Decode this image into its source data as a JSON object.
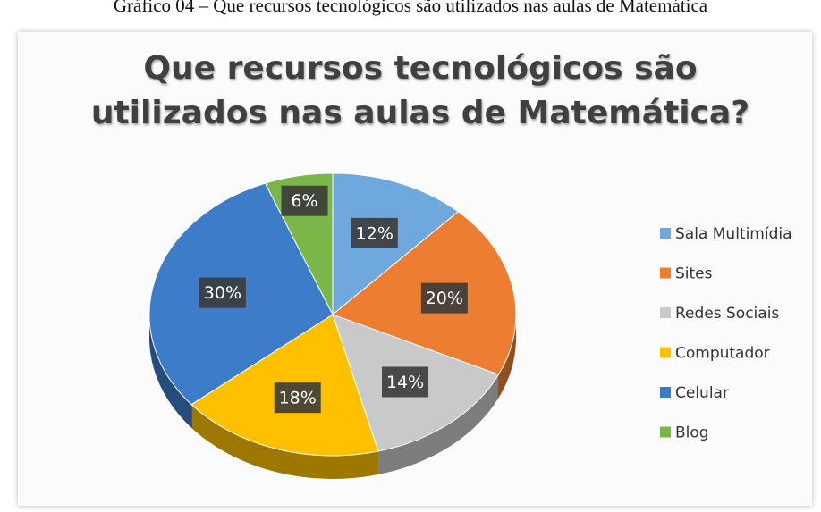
{
  "caption": "Gráfico 04 – Que recursos tecnológicos são utilizados nas aulas de Matemática",
  "chart_data": {
    "type": "pie",
    "title": "Que recursos tecnológicos são utilizados nas aulas de Matemática?",
    "categories": [
      "Sala Multimídia",
      "Sites",
      "Redes Sociais",
      "Computador",
      "Celular",
      "Blog"
    ],
    "values": [
      12,
      20,
      14,
      18,
      30,
      6
    ],
    "value_labels": [
      "12%",
      "20%",
      "14%",
      "18%",
      "30%",
      "6%"
    ],
    "colors": [
      "#6fa8dc",
      "#ed7d31",
      "#c9c9c9",
      "#ffc000",
      "#3d7cc9",
      "#7ab648"
    ],
    "legend": "right"
  }
}
